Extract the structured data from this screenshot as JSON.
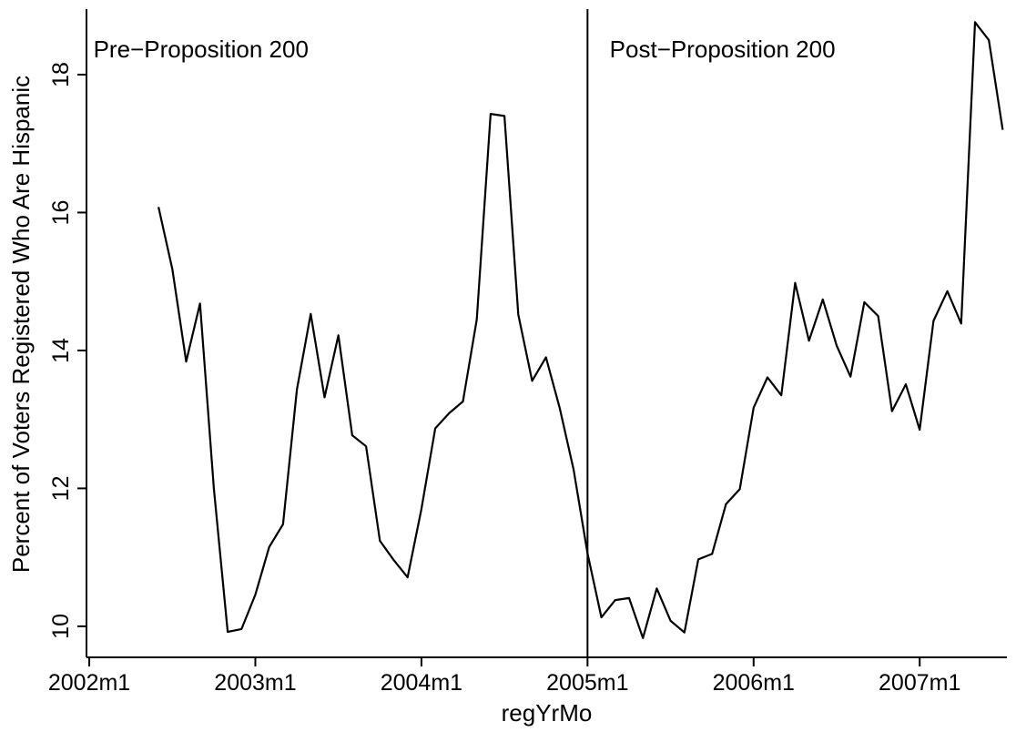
{
  "chart_data": {
    "type": "line",
    "xlabel": "regYrMo",
    "ylabel": "Percent of Voters Registered Who Are Hispanic",
    "x_ticks": [
      {
        "label": "2002m1",
        "value": 0
      },
      {
        "label": "2003m1",
        "value": 12
      },
      {
        "label": "2004m1",
        "value": 24
      },
      {
        "label": "2005m1",
        "value": 36
      },
      {
        "label": "2006m1",
        "value": 48
      },
      {
        "label": "2007m1",
        "value": 60
      }
    ],
    "y_ticks": [
      {
        "label": "10",
        "value": 10
      },
      {
        "label": "12",
        "value": 12
      },
      {
        "label": "14",
        "value": 14
      },
      {
        "label": "16",
        "value": 16
      },
      {
        "label": "18",
        "value": 18
      }
    ],
    "xlim": [
      -0.2,
      66.3
    ],
    "ylim": [
      9.55,
      18.95
    ],
    "reference_line": {
      "x_label": "2005m1",
      "x": 36
    },
    "annotations": [
      {
        "name": "pre-label",
        "text": "Pre−Proposition 200",
        "x": 0.3,
        "y": 18.25
      },
      {
        "name": "post-label",
        "text": "Post−Proposition 200",
        "x": 37.6,
        "y": 18.25
      }
    ],
    "grid": false,
    "series": [
      {
        "x": [
          "2002m6",
          "2002m7",
          "2002m8",
          "2002m9",
          "2002m10",
          "2002m11",
          "2002m12",
          "2003m1",
          "2003m2",
          "2003m3",
          "2003m4",
          "2003m5",
          "2003m6",
          "2003m7",
          "2003m8",
          "2003m9",
          "2003m10",
          "2003m11",
          "2003m12",
          "2004m1",
          "2004m2",
          "2004m3",
          "2004m4",
          "2004m5",
          "2004m6",
          "2004m7",
          "2004m8",
          "2004m9",
          "2004m10",
          "2004m11",
          "2004m12",
          "2005m1",
          "2005m2",
          "2005m3",
          "2005m4",
          "2005m5",
          "2005m6",
          "2005m7",
          "2005m8",
          "2005m9",
          "2005m10",
          "2005m11",
          "2005m12",
          "2006m1",
          "2006m2",
          "2006m3",
          "2006m4",
          "2006m5",
          "2006m6",
          "2006m7",
          "2006m8",
          "2006m9",
          "2006m10",
          "2006m11",
          "2006m12",
          "2007m1",
          "2007m2",
          "2007m3",
          "2007m4",
          "2007m5",
          "2007m6",
          "2007m7"
        ],
        "values": [
          16.08,
          15.18,
          13.84,
          14.68,
          12.0,
          9.92,
          9.96,
          10.46,
          11.15,
          11.48,
          13.43,
          14.53,
          13.32,
          14.22,
          12.77,
          12.61,
          11.24,
          10.96,
          10.71,
          11.7,
          12.87,
          13.09,
          13.26,
          14.45,
          17.43,
          17.4,
          14.52,
          13.56,
          13.9,
          13.16,
          12.27,
          11.06,
          10.13,
          10.38,
          10.41,
          9.83,
          10.55,
          10.08,
          9.91,
          10.97,
          11.05,
          11.77,
          11.99,
          13.17,
          13.61,
          13.35,
          14.98,
          14.14,
          14.74,
          14.07,
          13.62,
          14.7,
          14.5,
          13.12,
          13.51,
          12.85,
          14.43,
          14.86,
          14.39,
          18.76,
          18.5,
          17.2
        ]
      }
    ]
  }
}
